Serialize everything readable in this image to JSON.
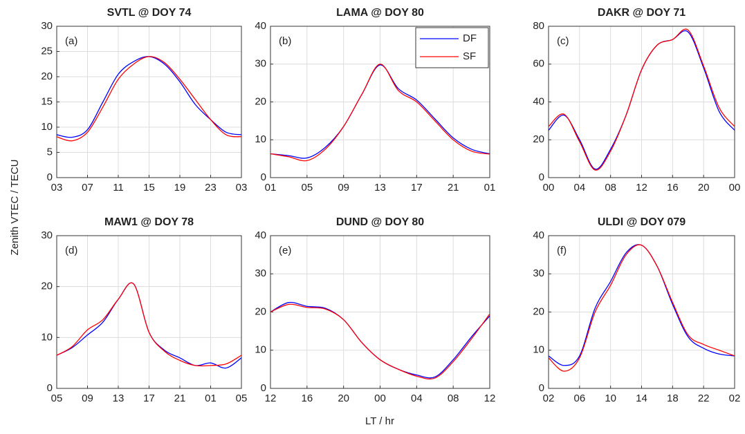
{
  "ylabel": "Zenith VTEC / TECU",
  "xlabel": "LT / hr",
  "chart_data": [
    {
      "type": "line",
      "title": "SVTL @ DOY 74",
      "annotation": "(a)",
      "grid": true,
      "x": [
        3,
        5,
        7,
        9,
        11,
        13,
        15,
        17,
        19,
        21,
        23,
        25,
        27
      ],
      "xlim": [
        3,
        27
      ],
      "xticks": [
        {
          "value": 3,
          "label": "03"
        },
        {
          "value": 7,
          "label": "07"
        },
        11,
        15,
        19,
        23,
        {
          "value": 27,
          "label": "03"
        }
      ],
      "ylim": [
        0,
        30
      ],
      "yticks": [
        0,
        5,
        10,
        15,
        20,
        25,
        30
      ],
      "series": [
        {
          "color": "#0000ff",
          "values": [
            8.5,
            8.0,
            9.5,
            15,
            20.5,
            23,
            24,
            22.5,
            19,
            14.5,
            11.5,
            9,
            8.5
          ]
        },
        {
          "color": "#ff0000",
          "values": [
            8.1,
            7.3,
            9,
            14,
            19.5,
            22.5,
            24,
            22.8,
            19.5,
            15.5,
            11.5,
            8.5,
            8.1
          ]
        }
      ]
    },
    {
      "type": "line",
      "title": "LAMA @ DOY 80",
      "annotation": "(b)",
      "grid": true,
      "legend": "upper right",
      "x": [
        1,
        3,
        5,
        7,
        9,
        11,
        13,
        15,
        17,
        19,
        21,
        23,
        25
      ],
      "xlim": [
        1,
        25
      ],
      "xticks": [
        {
          "value": 1,
          "label": "01"
        },
        {
          "value": 5,
          "label": "05"
        },
        {
          "value": 9,
          "label": "09"
        },
        13,
        17,
        21,
        {
          "value": 25,
          "label": "01"
        }
      ],
      "ylim": [
        0,
        40
      ],
      "yticks": [
        0,
        10,
        20,
        30,
        40
      ],
      "series": [
        {
          "name": "DF",
          "color": "#0000ff",
          "values": [
            6.3,
            5.8,
            5.2,
            8,
            13.5,
            22,
            29.8,
            23.5,
            20.5,
            15.5,
            10.5,
            7.5,
            6.3
          ]
        },
        {
          "name": "SF",
          "color": "#ff0000",
          "values": [
            6.3,
            5.5,
            4.5,
            7.5,
            13.5,
            22,
            30,
            23,
            20,
            15,
            10,
            7,
            6.2
          ]
        }
      ]
    },
    {
      "type": "line",
      "title": "DAKR @ DOY 71",
      "annotation": "(c)",
      "grid": true,
      "x": [
        0,
        2,
        4,
        6,
        8,
        10,
        12,
        14,
        16,
        18,
        20,
        22,
        24
      ],
      "xlim": [
        0,
        24
      ],
      "xticks": [
        {
          "value": 0,
          "label": "00"
        },
        {
          "value": 4,
          "label": "04"
        },
        {
          "value": 8,
          "label": "08"
        },
        12,
        16,
        20,
        {
          "value": 24,
          "label": "00"
        }
      ],
      "ylim": [
        0,
        80
      ],
      "yticks": [
        0,
        20,
        40,
        60,
        80
      ],
      "series": [
        {
          "color": "#0000ff",
          "values": [
            25,
            33,
            20,
            4.5,
            15,
            33,
            57,
            70,
            73,
            77,
            58,
            35,
            25
          ]
        },
        {
          "color": "#ff0000",
          "values": [
            27,
            33.5,
            19,
            4,
            14,
            33,
            57,
            70,
            73,
            78,
            59,
            37,
            27
          ]
        }
      ]
    },
    {
      "type": "line",
      "title": "MAW1 @ DOY 78",
      "annotation": "(d)",
      "grid": true,
      "x": [
        5,
        7,
        9,
        11,
        13,
        15,
        17,
        19,
        21,
        23,
        25,
        27,
        29
      ],
      "xlim": [
        5,
        29
      ],
      "xticks": [
        {
          "value": 5,
          "label": "05"
        },
        {
          "value": 9,
          "label": "09"
        },
        13,
        17,
        21,
        {
          "value": 25,
          "label": "01"
        },
        {
          "value": 29,
          "label": "05"
        }
      ],
      "ylim": [
        0,
        30
      ],
      "yticks": [
        0,
        10,
        20,
        30
      ],
      "series": [
        {
          "color": "#0000ff",
          "values": [
            6.5,
            8,
            10.5,
            13,
            17.5,
            20.5,
            11,
            7.5,
            6,
            4.5,
            5,
            4,
            6
          ]
        },
        {
          "color": "#ff0000",
          "values": [
            6.5,
            8.2,
            11.5,
            13.5,
            17.5,
            20.5,
            11,
            7.3,
            5.5,
            4.5,
            4.5,
            4.8,
            6.5
          ]
        }
      ]
    },
    {
      "type": "line",
      "title": "DUND @ DOY 80",
      "annotation": "(e)",
      "grid": true,
      "x": [
        12,
        14,
        16,
        18,
        20,
        22,
        24,
        26,
        28,
        30,
        32,
        34,
        36
      ],
      "xlim": [
        12,
        36
      ],
      "xticks": [
        12,
        16,
        20,
        {
          "value": 24,
          "label": "00"
        },
        {
          "value": 28,
          "label": "04"
        },
        {
          "value": 32,
          "label": "08"
        },
        {
          "value": 36,
          "label": "12"
        }
      ],
      "ylim": [
        0,
        40
      ],
      "yticks": [
        0,
        10,
        20,
        30,
        40
      ],
      "series": [
        {
          "color": "#0000ff",
          "values": [
            20,
            22.5,
            21.5,
            21,
            18,
            12,
            7.5,
            5,
            3.5,
            3,
            7.5,
            13.5,
            19
          ]
        },
        {
          "color": "#ff0000",
          "values": [
            20,
            22,
            21.2,
            20.8,
            18,
            12,
            7.5,
            5,
            3.2,
            2.7,
            7,
            13,
            19.5
          ]
        }
      ]
    },
    {
      "type": "line",
      "title": "ULDI @ DOY 079",
      "annotation": "(f)",
      "grid": true,
      "x": [
        2,
        4,
        6,
        8,
        10,
        12,
        14,
        16,
        18,
        20,
        22,
        24,
        26
      ],
      "xlim": [
        2,
        26
      ],
      "xticks": [
        {
          "value": 2,
          "label": "02"
        },
        {
          "value": 6,
          "label": "06"
        },
        10,
        14,
        18,
        22,
        {
          "value": 26,
          "label": "02"
        }
      ],
      "ylim": [
        0,
        40
      ],
      "yticks": [
        0,
        10,
        20,
        30,
        40
      ],
      "series": [
        {
          "color": "#0000ff",
          "values": [
            8.5,
            6,
            8.5,
            21,
            28,
            35.5,
            37.5,
            32,
            22,
            13.5,
            10.5,
            9,
            8.5
          ]
        },
        {
          "color": "#ff0000",
          "values": [
            8,
            4.5,
            8,
            20,
            27,
            35,
            37.5,
            32,
            22.5,
            14,
            11.5,
            10,
            8.5
          ]
        }
      ]
    }
  ]
}
